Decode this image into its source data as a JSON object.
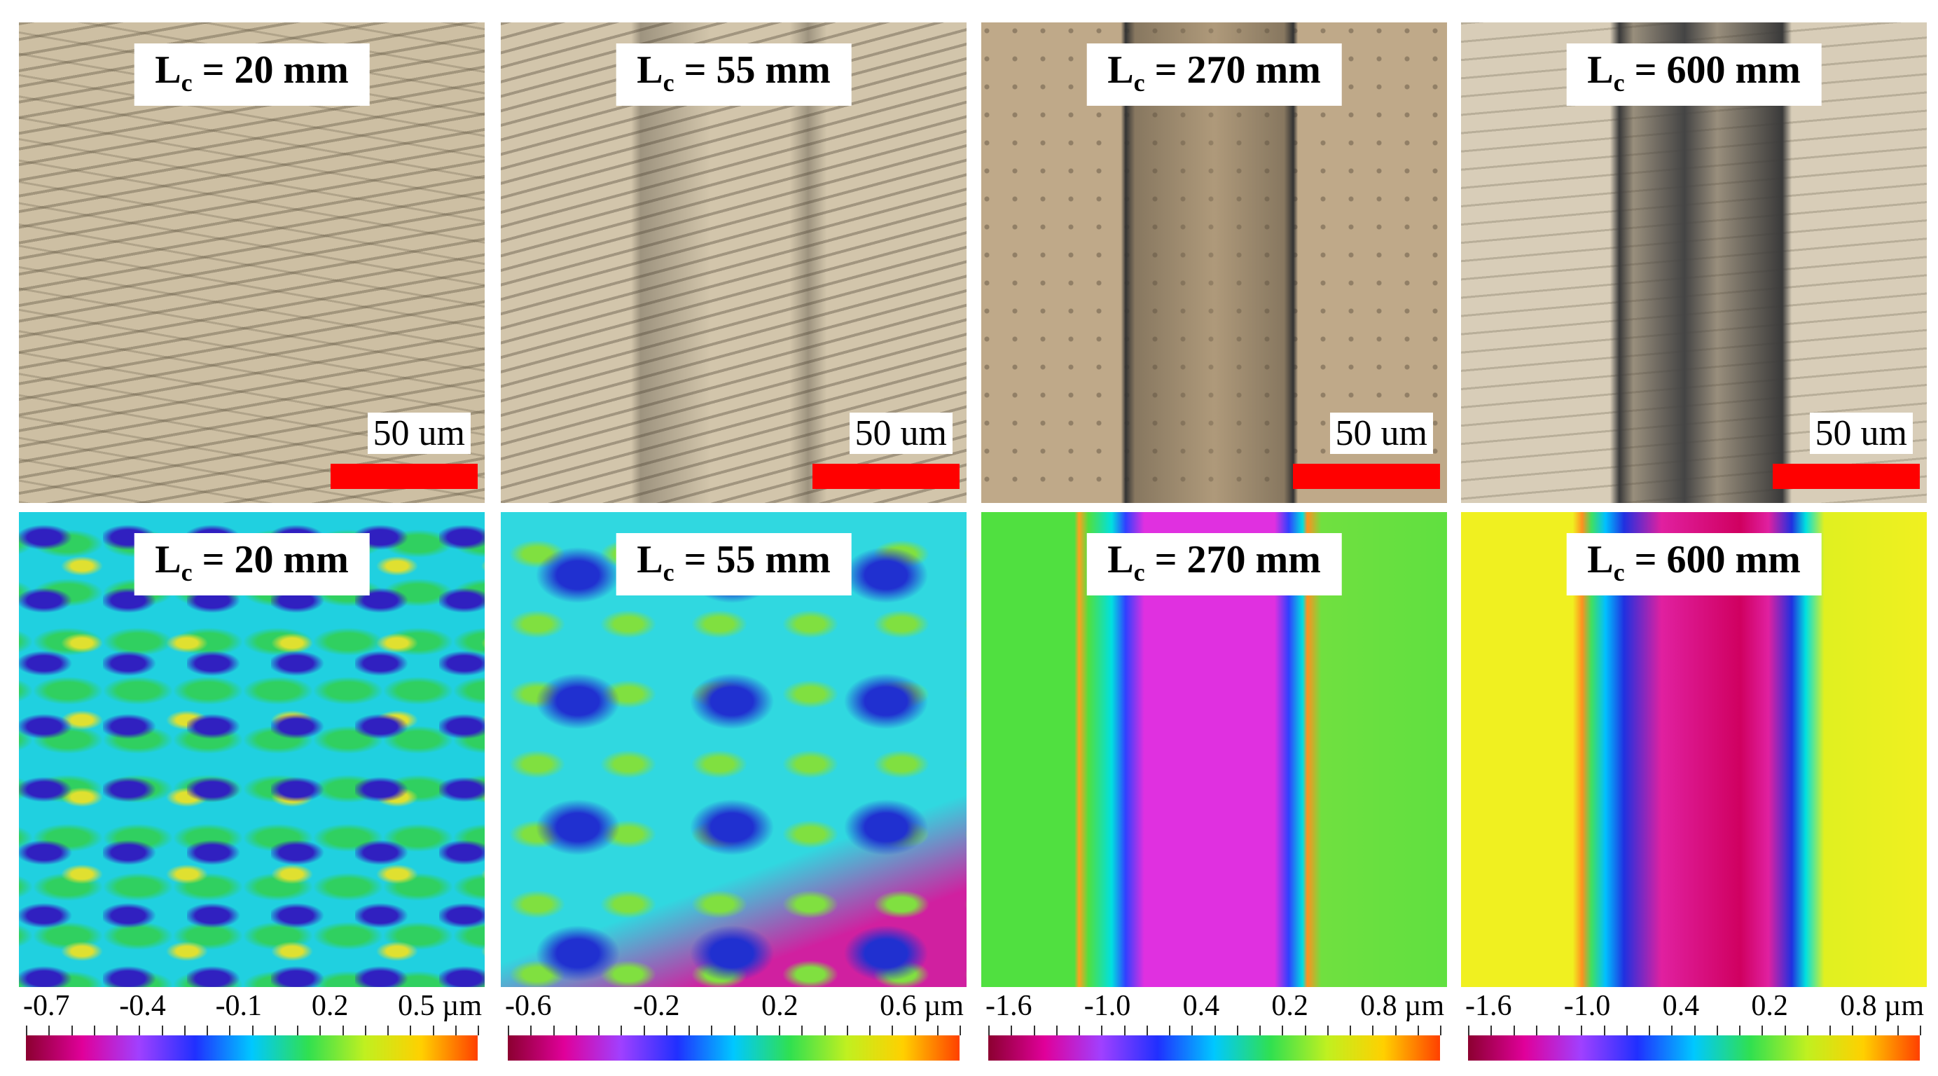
{
  "micrographs": [
    {
      "label": {
        "main": "L",
        "sub": "c",
        "rest": "= 20 mm"
      },
      "scale_bar": "50 um"
    },
    {
      "label": {
        "main": "L",
        "sub": "c",
        "rest": "= 55 mm"
      },
      "scale_bar": "50 um"
    },
    {
      "label": {
        "main": "L",
        "sub": "c",
        "rest": "= 270 mm"
      },
      "scale_bar": "50 um"
    },
    {
      "label": {
        "main": "L",
        "sub": "c",
        "rest": "= 600 mm"
      },
      "scale_bar": "50 um"
    }
  ],
  "height_maps": [
    {
      "label": {
        "main": "L",
        "sub": "c",
        "rest": "= 20 mm"
      },
      "colorbar_ticks": [
        "-0.7",
        "-0.4",
        "-0.1",
        "0.2",
        "0.5 µm"
      ]
    },
    {
      "label": {
        "main": "L",
        "sub": "c",
        "rest": "= 55 mm"
      },
      "colorbar_ticks": [
        "-0.6",
        "-0.2",
        "0.2",
        "0.6 µm"
      ]
    },
    {
      "label": {
        "main": "L",
        "sub": "c",
        "rest": "= 270 mm"
      },
      "colorbar_ticks": [
        "-1.6",
        "-1.0",
        "0.4",
        "0.2",
        "0.8 µm"
      ]
    },
    {
      "label": {
        "main": "L",
        "sub": "c",
        "rest": "= 600 mm"
      },
      "colorbar_ticks": [
        "-1.6",
        "-1.0",
        "0.4",
        "0.2",
        "0.8 µm"
      ]
    }
  ]
}
